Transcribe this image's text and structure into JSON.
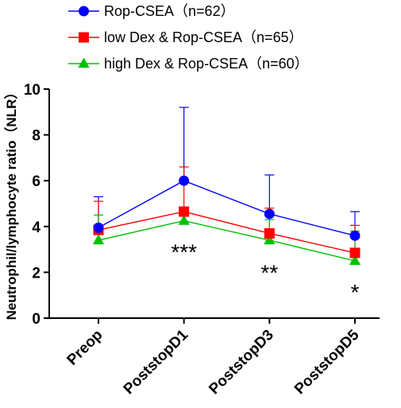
{
  "chart_data": {
    "type": "line",
    "categories": [
      "Preop",
      "PoststopD1",
      "PoststopD3",
      "PoststopD5"
    ],
    "ylabel": "Neutrophil/lymphocyte ratio（NLR）",
    "xlabel": "",
    "ylim": [
      0,
      10
    ],
    "yticks": [
      0,
      2,
      4,
      6,
      8,
      10
    ],
    "legend_position": "top-left",
    "series": [
      {
        "name": "Rop-CSEA（n=62）",
        "color": "#0000ff",
        "marker": "circle",
        "values": [
          3.95,
          6.0,
          4.55,
          3.6
        ],
        "error_upper": [
          5.3,
          9.2,
          6.25,
          4.65
        ]
      },
      {
        "name": "low Dex & Rop-CSEA（n=65）",
        "color": "#ff0000",
        "marker": "square",
        "values": [
          3.85,
          4.65,
          3.7,
          2.85
        ],
        "error_upper": [
          5.1,
          6.6,
          4.8,
          4.05
        ]
      },
      {
        "name": "high Dex & Rop-CSEA（n=60）",
        "color": "#00c000",
        "marker": "triangle",
        "values": [
          3.4,
          4.25,
          3.4,
          2.5
        ],
        "error_upper": [
          4.5,
          4.75,
          4.3,
          3.8
        ]
      }
    ],
    "annotations": [
      {
        "category": "PoststopD1",
        "text": "***",
        "y": 2.9
      },
      {
        "category": "PoststopD3",
        "text": "**",
        "y": 2.0
      },
      {
        "category": "PoststopD5",
        "text": "*",
        "y": 1.15
      }
    ]
  }
}
